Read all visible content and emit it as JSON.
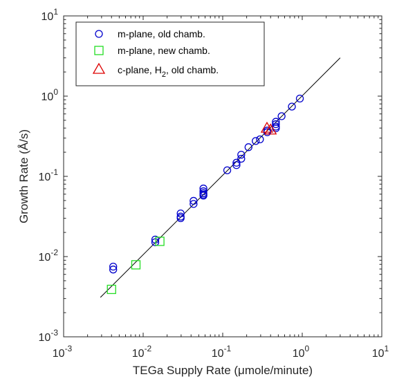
{
  "chart_data": {
    "type": "scatter",
    "xlabel": "TEGa Supply Rate (μmole/minute)",
    "ylabel": "Growth Rate (Å/s)",
    "x_scale": "log",
    "y_scale": "log",
    "xlim": [
      0.001,
      10
    ],
    "ylim": [
      0.001,
      10
    ],
    "x_ticks": [
      {
        "base": "10",
        "exp": "-3",
        "value": 0.001
      },
      {
        "base": "10",
        "exp": "-2",
        "value": 0.01
      },
      {
        "base": "10",
        "exp": "-1",
        "value": 0.1
      },
      {
        "base": "10",
        "exp": "0",
        "value": 1
      },
      {
        "base": "10",
        "exp": "1",
        "value": 10
      }
    ],
    "y_ticks": [
      {
        "base": "10",
        "exp": "-3",
        "value": 0.001
      },
      {
        "base": "10",
        "exp": "-2",
        "value": 0.01
      },
      {
        "base": "10",
        "exp": "-1",
        "value": 0.1
      },
      {
        "base": "10",
        "exp": "0",
        "value": 1
      },
      {
        "base": "10",
        "exp": "1",
        "value": 10
      }
    ],
    "grid": false,
    "legend_position": "top-left",
    "series": [
      {
        "name": "m-plane, old chamb.",
        "marker": "circle",
        "color": "#0000CC",
        "points": [
          {
            "x": 0.0042,
            "y": 0.0075
          },
          {
            "x": 0.0042,
            "y": 0.0069
          },
          {
            "x": 0.0142,
            "y": 0.0163
          },
          {
            "x": 0.0142,
            "y": 0.0151
          },
          {
            "x": 0.0296,
            "y": 0.0345
          },
          {
            "x": 0.0296,
            "y": 0.0315
          },
          {
            "x": 0.0296,
            "y": 0.0301
          },
          {
            "x": 0.043,
            "y": 0.0495
          },
          {
            "x": 0.043,
            "y": 0.0453
          },
          {
            "x": 0.0572,
            "y": 0.0706
          },
          {
            "x": 0.0572,
            "y": 0.0652
          },
          {
            "x": 0.0572,
            "y": 0.0617
          },
          {
            "x": 0.0572,
            "y": 0.0592
          },
          {
            "x": 0.0572,
            "y": 0.0575
          },
          {
            "x": 0.114,
            "y": 0.119
          },
          {
            "x": 0.149,
            "y": 0.148
          },
          {
            "x": 0.149,
            "y": 0.138
          },
          {
            "x": 0.171,
            "y": 0.186
          },
          {
            "x": 0.171,
            "y": 0.166
          },
          {
            "x": 0.211,
            "y": 0.231
          },
          {
            "x": 0.26,
            "y": 0.276
          },
          {
            "x": 0.294,
            "y": 0.289
          },
          {
            "x": 0.363,
            "y": 0.372
          },
          {
            "x": 0.363,
            "y": 0.355
          },
          {
            "x": 0.466,
            "y": 0.479
          },
          {
            "x": 0.466,
            "y": 0.447
          },
          {
            "x": 0.466,
            "y": 0.417
          },
          {
            "x": 0.466,
            "y": 0.398
          },
          {
            "x": 0.55,
            "y": 0.562
          },
          {
            "x": 0.741,
            "y": 0.741
          },
          {
            "x": 0.933,
            "y": 0.933
          }
        ]
      },
      {
        "name": "m-plane, new chamb.",
        "marker": "square",
        "color": "#22DD22",
        "points": [
          {
            "x": 0.004,
            "y": 0.0039
          },
          {
            "x": 0.0081,
            "y": 0.0079
          },
          {
            "x": 0.0162,
            "y": 0.0155
          }
        ]
      },
      {
        "name_parts": {
          "before": "c-plane, H",
          "sub": "2",
          "after": ", old chamb."
        },
        "marker": "triangle",
        "color": "#DD0000",
        "points": [
          {
            "x": 0.36,
            "y": 0.4
          },
          {
            "x": 0.4,
            "y": 0.38
          }
        ]
      }
    ],
    "fit_line": {
      "color": "#000000",
      "x": [
        0.0029,
        3.0
      ],
      "y": [
        0.0031,
        3.0
      ]
    }
  }
}
